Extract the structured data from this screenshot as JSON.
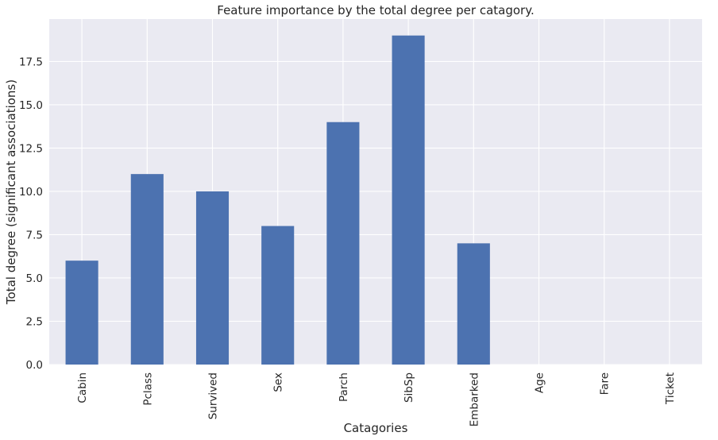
{
  "chart_data": {
    "type": "bar",
    "title": "Feature importance by the total degree per catagory.",
    "xlabel": "Catagories",
    "ylabel": "Total degree (significant associations)",
    "categories": [
      "Cabin",
      "Pclass",
      "Survived",
      "Sex",
      "Parch",
      "SibSp",
      "Embarked",
      "Age",
      "Fare",
      "Ticket"
    ],
    "values": [
      6,
      11,
      10,
      8,
      14,
      19,
      7,
      0,
      0,
      0
    ],
    "ylim": [
      0,
      19.95
    ],
    "yticks": [
      "0.0",
      "2.5",
      "5.0",
      "7.5",
      "10.0",
      "12.5",
      "15.0",
      "17.5"
    ],
    "grid": true,
    "colors": {
      "bar": "#4c72b0",
      "plot_background": "#eaeaf2",
      "grid": "#ffffff"
    }
  }
}
